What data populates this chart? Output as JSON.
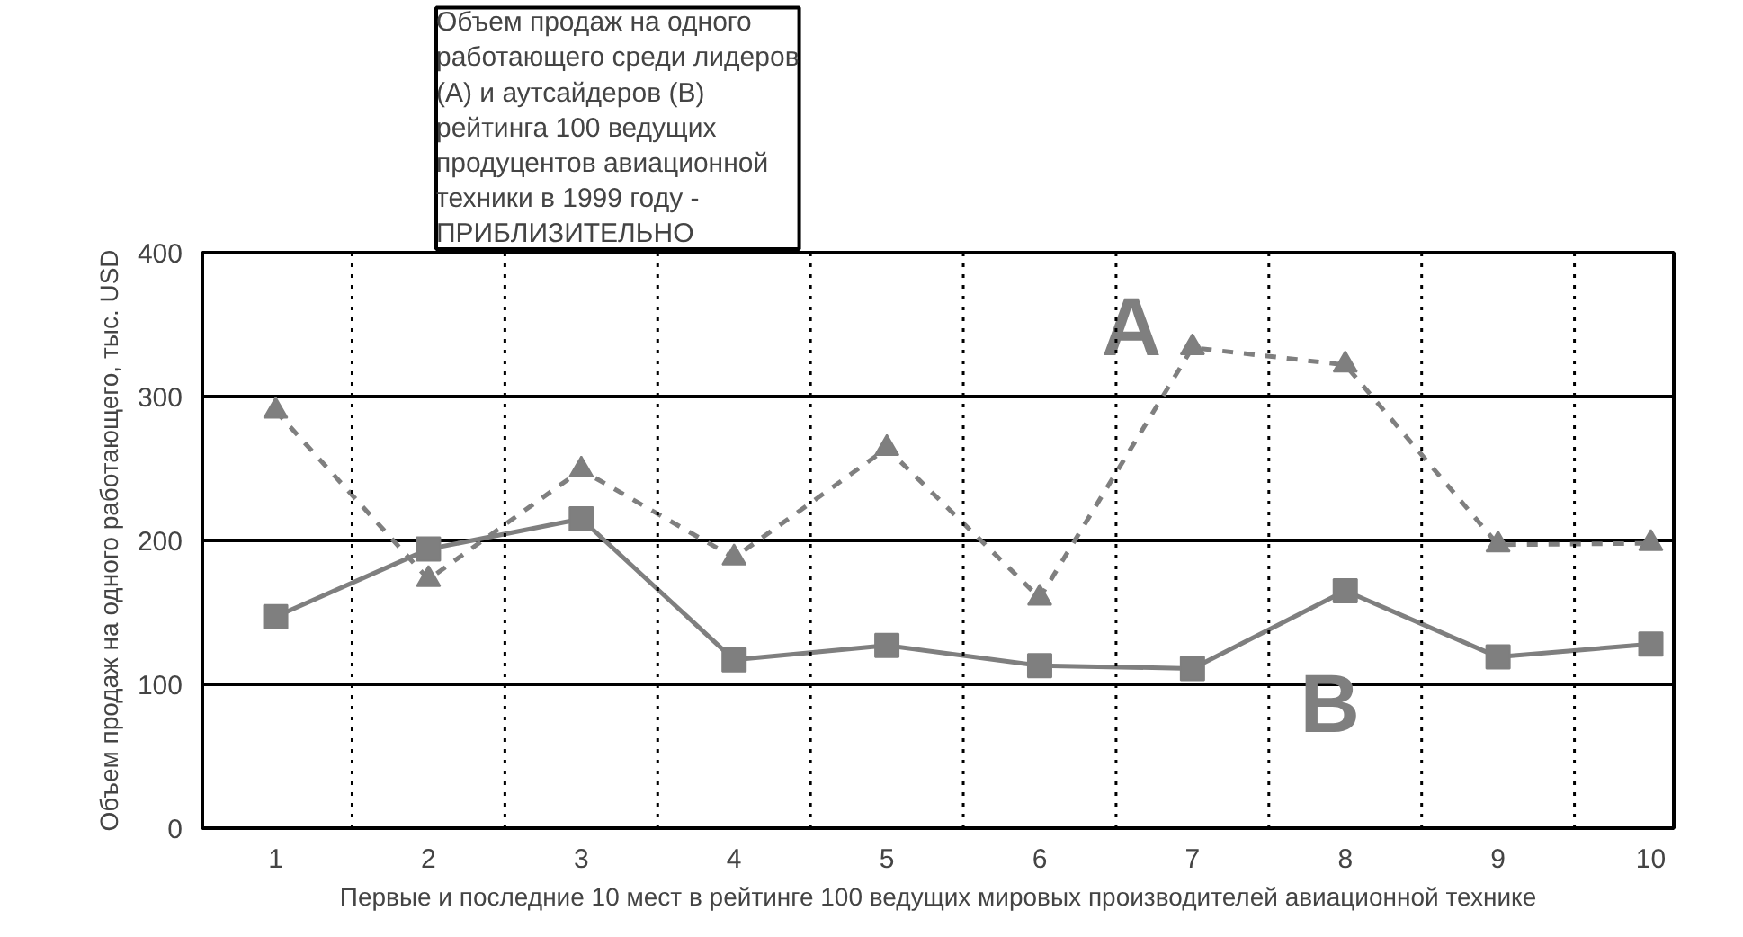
{
  "chart_data": {
    "type": "line",
    "ylabel": "Объем продаж на одного работающего, тыс. USD",
    "xlabel": "Первые и последние 10 мест в рейтинге 100 ведущих мировых производителей авиационной технике",
    "annotations": [
      "Объем продаж на одного\nработающего среди лидеров\n(А) и аутсайдеров (В)\nрейтинга 100 ведущих\nпродуцентов авиационной\nтехники в 1999 году -\nПРИБЛИЗИТЕЛЬНО"
    ],
    "categories": [
      "1",
      "2",
      "3",
      "4",
      "5",
      "6",
      "7",
      "8",
      "9",
      "10"
    ],
    "series": [
      {
        "name": "A",
        "color": "#7f7f7f",
        "marker": "triangle",
        "line_style": "dashed",
        "values": [
          290,
          173,
          249,
          188,
          264,
          160,
          334,
          322,
          197,
          198
        ]
      },
      {
        "name": "B",
        "color": "#7f7f7f",
        "marker": "square",
        "line_style": "solid",
        "values": [
          147,
          194,
          215,
          117,
          127,
          113,
          111,
          165,
          119,
          128
        ]
      }
    ],
    "ylim": [
      0,
      400
    ],
    "yticks": [
      0,
      100,
      200,
      300,
      400
    ],
    "grid": true
  }
}
